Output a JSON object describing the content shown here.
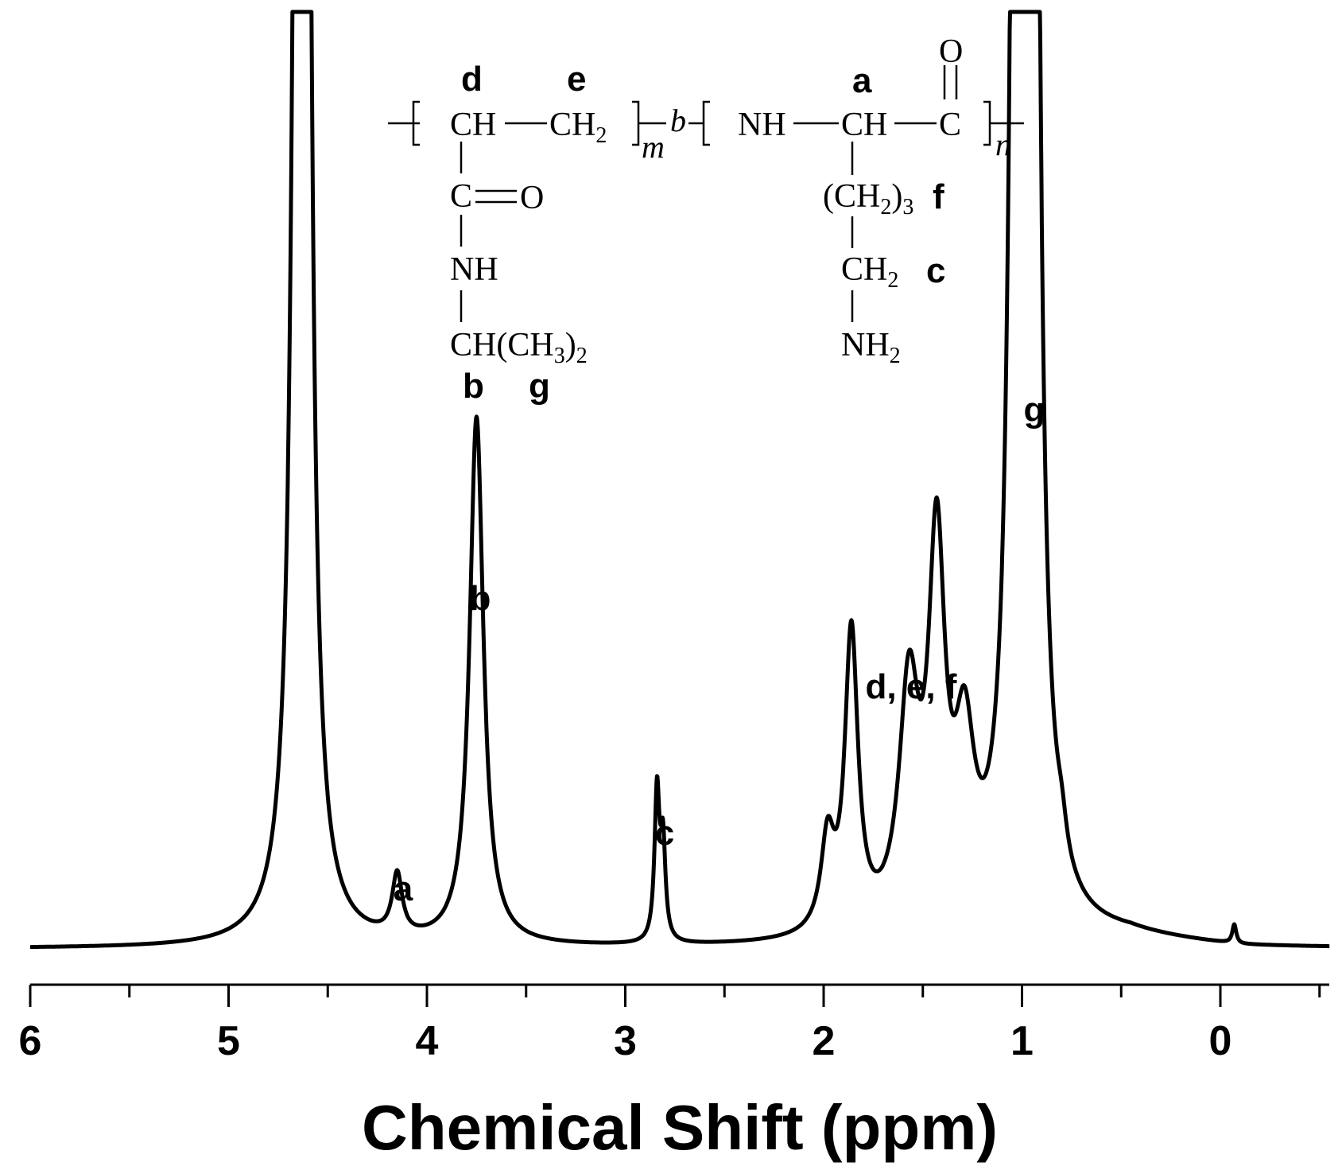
{
  "chart_data": {
    "type": "line",
    "title": "",
    "xlabel": "Chemical Shift (ppm)",
    "ylabel": "",
    "xlim": [
      6,
      -0.55
    ],
    "x_reversed": true,
    "ticks": [
      "6",
      "5",
      "4",
      "3",
      "2",
      "1",
      "0"
    ],
    "ylim": [
      0,
      100
    ],
    "grid": false,
    "peaks": [
      {
        "position": 4.63,
        "height": 400,
        "width": 0.022,
        "label": ""
      },
      {
        "position": 4.15,
        "height": 4.5,
        "width": 0.03,
        "label": "a"
      },
      {
        "position": 3.75,
        "height": 39,
        "width": 0.042,
        "label": "b"
      },
      {
        "position": 2.84,
        "height": 11,
        "width": 0.015,
        "label": "c"
      },
      {
        "position": 2.81,
        "height": 7,
        "width": 0.015,
        "label": ""
      },
      {
        "position": 1.98,
        "height": 6.5,
        "width": 0.04,
        "label": ""
      },
      {
        "position": 1.86,
        "height": 22,
        "width": 0.04,
        "label": ""
      },
      {
        "position": 1.57,
        "height": 17,
        "width": 0.06,
        "label": ""
      },
      {
        "position": 1.43,
        "height": 27,
        "width": 0.05,
        "label": ""
      },
      {
        "position": 1.29,
        "height": 12,
        "width": 0.06,
        "label": ""
      },
      {
        "position": 1.01,
        "height": 400,
        "width": 0.02,
        "label": ""
      },
      {
        "position": 0.96,
        "height": 400,
        "width": 0.02,
        "label": "g"
      },
      {
        "position": 0.8,
        "height": 2,
        "width": 0.03,
        "label": ""
      },
      {
        "position": -0.07,
        "height": 1.4,
        "width": 0.012,
        "label": ""
      }
    ],
    "annotations": [
      "a",
      "b",
      "c",
      "d, e, f",
      "g"
    ]
  },
  "structure": {
    "labels": {
      "a": "a",
      "b": "b",
      "c": "c",
      "d": "d",
      "e": "e",
      "f": "f",
      "g": "g"
    },
    "text": {
      "ch": "CH",
      "ch2": "CH",
      "sub2": "2",
      "sub3": "3",
      "nh": "NH",
      "c": "C",
      "o": "O",
      "c_eq_o": "C",
      "o_side": "O",
      "nh_side": "NH",
      "ch_iso": "CH(CH",
      "iso_close": ")",
      "ch2_chain_open": "(CH",
      "ch2_chain_close": ")",
      "ch2_c": "CH",
      "nh2": "NH",
      "m": "m",
      "b_ital": "b",
      "n": "n"
    }
  }
}
